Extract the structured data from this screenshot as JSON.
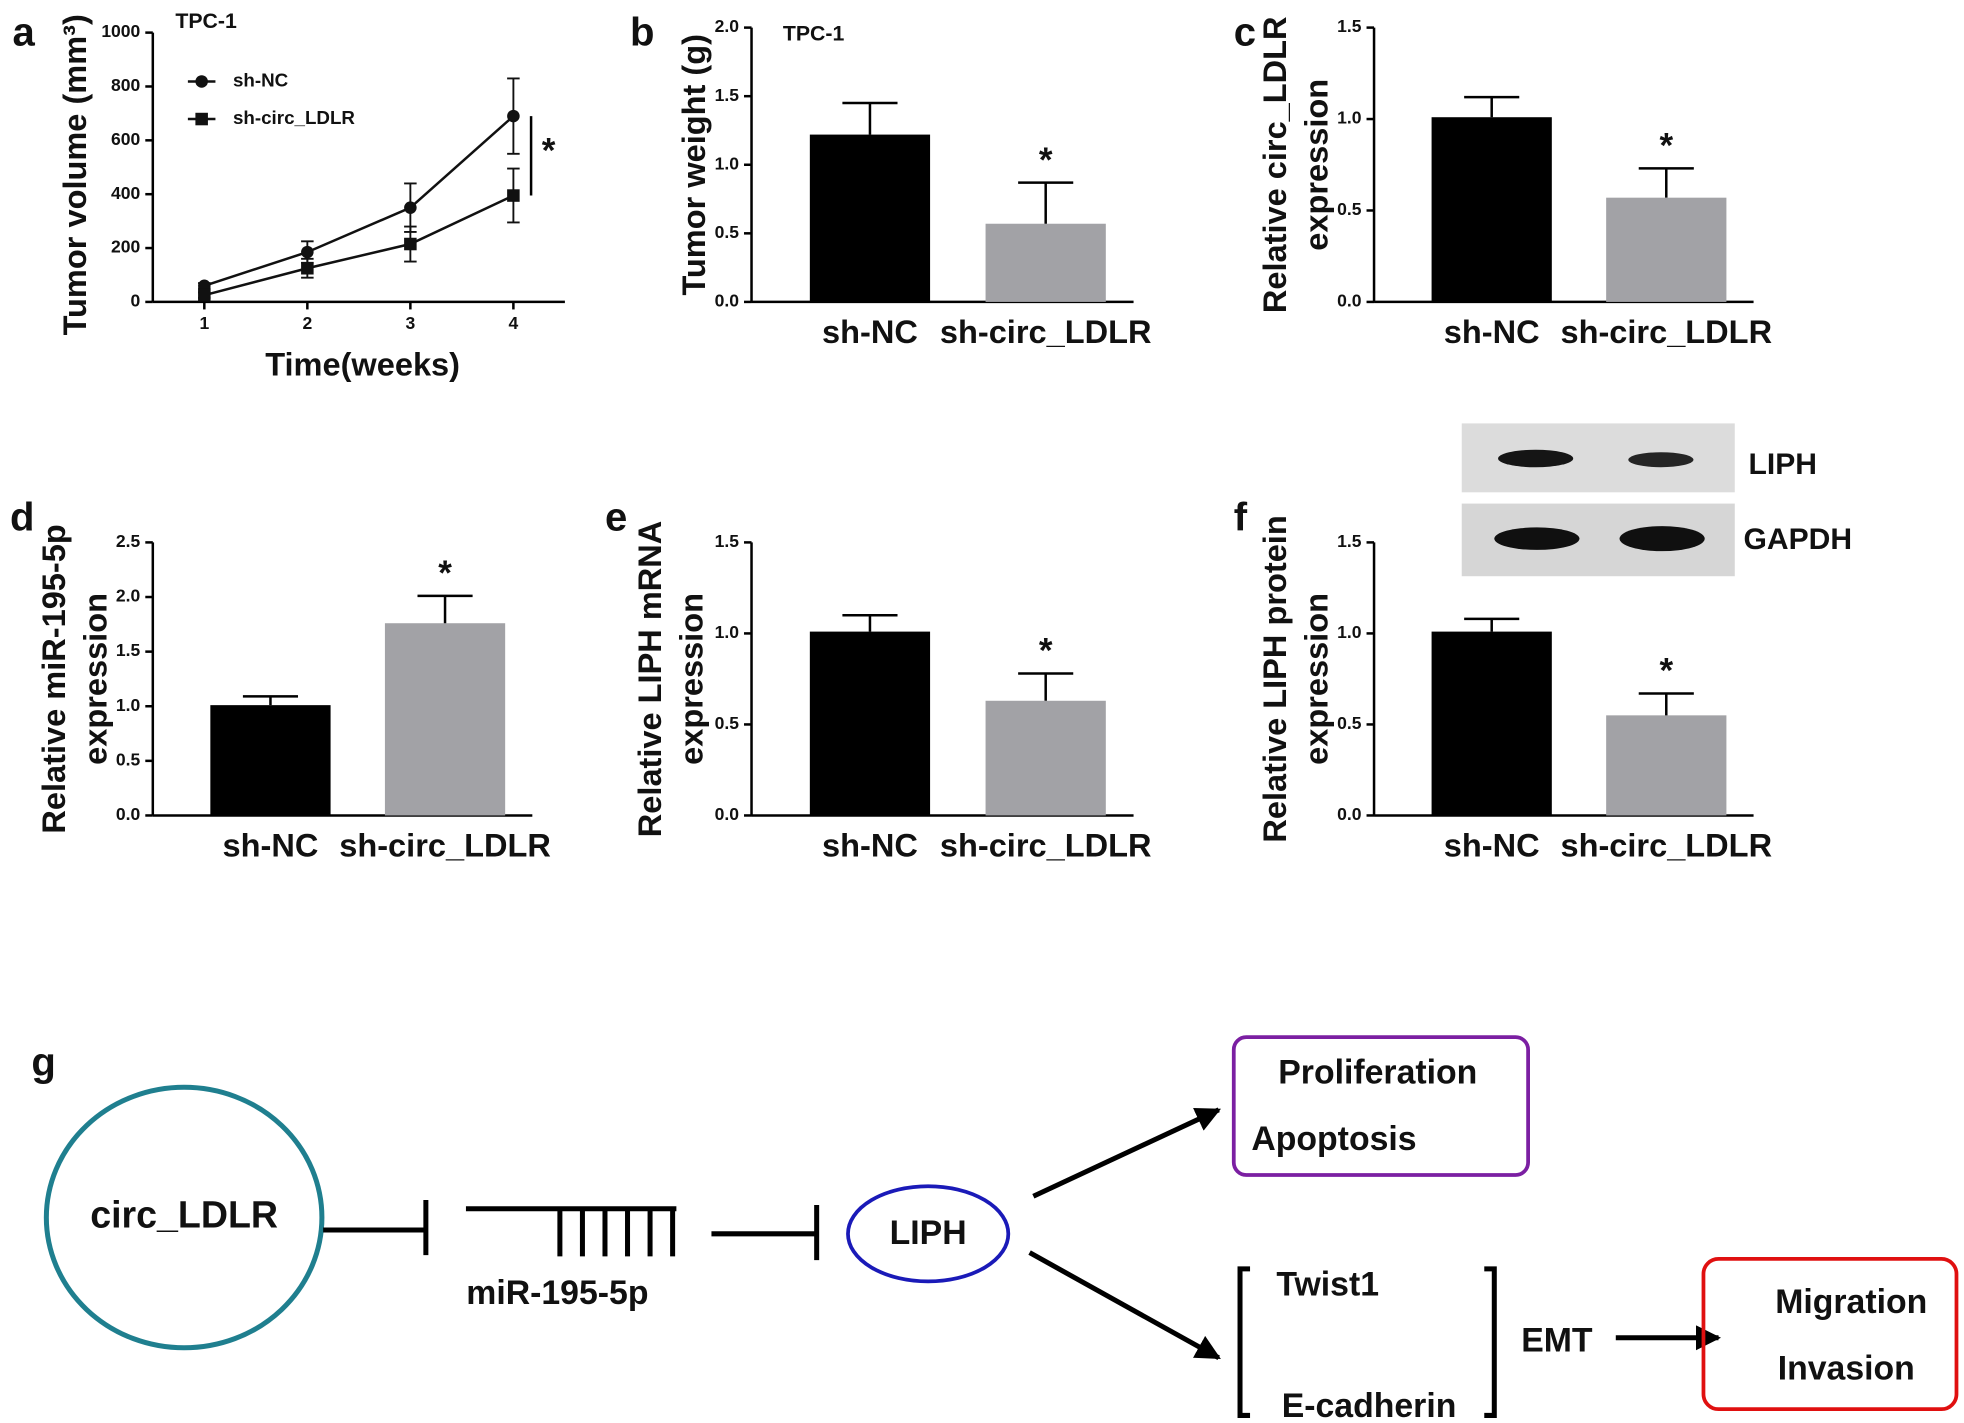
{
  "chart_data": [
    {
      "type": "line",
      "panel": "a",
      "title": "TPC-1",
      "ylabel": "Tumor volume (mm³)",
      "xlabel": "Time(weeks)",
      "x": [
        1,
        2,
        3,
        4
      ],
      "xlim": [
        0.5,
        4.5
      ],
      "xticks": [
        1,
        2,
        3,
        4
      ],
      "ylim": [
        0,
        1000
      ],
      "yticks": [
        0,
        200,
        400,
        600,
        800,
        1000
      ],
      "series": [
        {
          "name": "sh-NC",
          "color": "#111111",
          "marker": "circle",
          "values": [
            60,
            185,
            350,
            690
          ],
          "errors": [
            10,
            40,
            90,
            140
          ]
        },
        {
          "name": "sh-circ_LDLR",
          "color": "#111111",
          "marker": "square",
          "values": [
            25,
            125,
            215,
            395
          ],
          "errors": [
            10,
            35,
            65,
            100
          ]
        }
      ],
      "significance": "*"
    },
    {
      "type": "bar",
      "panel": "b",
      "title": "TPC-1",
      "ylabel": [
        "Tumor weight (g)"
      ],
      "categories": [
        "sh-NC",
        "sh-circ_LDLR"
      ],
      "values": [
        1.22,
        0.57
      ],
      "errors": [
        0.23,
        0.3
      ],
      "colors": [
        "#000000",
        "#a2a2a6"
      ],
      "ylim": [
        0,
        2
      ],
      "yticks": [
        {
          "value": 0,
          "label": "0.0"
        },
        {
          "value": 0.5,
          "label": "0.5"
        },
        {
          "value": 1,
          "label": "1.0"
        },
        {
          "value": 1.5,
          "label": "1.5"
        },
        {
          "value": 2,
          "label": "2.0"
        }
      ],
      "significance": "*"
    },
    {
      "type": "bar",
      "panel": "c",
      "ylabel": [
        "Relative circ_LDLR",
        "expression"
      ],
      "categories": [
        "sh-NC",
        "sh-circ_LDLR"
      ],
      "values": [
        1.01,
        0.57
      ],
      "errors": [
        0.11,
        0.16
      ],
      "colors": [
        "#000000",
        "#a2a2a6"
      ],
      "ylim": [
        0,
        1.5
      ],
      "yticks": [
        {
          "value": 0,
          "label": "0.0"
        },
        {
          "value": 0.5,
          "label": "0.5"
        },
        {
          "value": 1,
          "label": "1.0"
        },
        {
          "value": 1.5,
          "label": "1.5"
        }
      ],
      "significance": "*"
    },
    {
      "type": "bar",
      "panel": "d",
      "ylabel": [
        "Relative miR-195-5p",
        "expression"
      ],
      "categories": [
        "sh-NC",
        "sh-circ_LDLR"
      ],
      "values": [
        1.01,
        1.76
      ],
      "errors": [
        0.08,
        0.25
      ],
      "colors": [
        "#000000",
        "#a2a2a6"
      ],
      "ylim": [
        0,
        2.5
      ],
      "yticks": [
        {
          "value": 0,
          "label": "0.0"
        },
        {
          "value": 0.5,
          "label": "0.5"
        },
        {
          "value": 1,
          "label": "1.0"
        },
        {
          "value": 1.5,
          "label": "1.5"
        },
        {
          "value": 2,
          "label": "2.0"
        },
        {
          "value": 2.5,
          "label": "2.5"
        }
      ],
      "significance": "*"
    },
    {
      "type": "bar",
      "panel": "e",
      "ylabel": [
        "Relative LIPH mRNA",
        "expression"
      ],
      "categories": [
        "sh-NC",
        "sh-circ_LDLR"
      ],
      "values": [
        1.01,
        0.63
      ],
      "errors": [
        0.09,
        0.15
      ],
      "colors": [
        "#000000",
        "#a2a2a6"
      ],
      "ylim": [
        0,
        1.5
      ],
      "yticks": [
        {
          "value": 0,
          "label": "0.0"
        },
        {
          "value": 0.5,
          "label": "0.5"
        },
        {
          "value": 1,
          "label": "1.0"
        },
        {
          "value": 1.5,
          "label": "1.5"
        }
      ],
      "significance": "*"
    },
    {
      "type": "bar",
      "panel": "f",
      "ylabel": [
        "Relative LIPH protein",
        "expression"
      ],
      "categories": [
        "sh-NC",
        "sh-circ_LDLR"
      ],
      "values": [
        1.01,
        0.55
      ],
      "errors": [
        0.07,
        0.12
      ],
      "colors": [
        "#000000",
        "#a2a2a6"
      ],
      "ylim": [
        0,
        1.5
      ],
      "yticks": [
        {
          "value": 0,
          "label": "0.0"
        },
        {
          "value": 0.5,
          "label": "0.5"
        },
        {
          "value": 1,
          "label": "1.0"
        },
        {
          "value": 1.5,
          "label": "1.5"
        }
      ],
      "significance": "*",
      "blot_labels": [
        "LIPH",
        "GAPDH"
      ]
    }
  ],
  "diagram": {
    "panel": "g",
    "nodes": [
      "circ_LDLR",
      "miR-195-5p",
      "LIPH",
      "Proliferation",
      "Apoptosis",
      "Twist1",
      "E-cadherin",
      "EMT",
      "Migration",
      "Invasion"
    ]
  }
}
